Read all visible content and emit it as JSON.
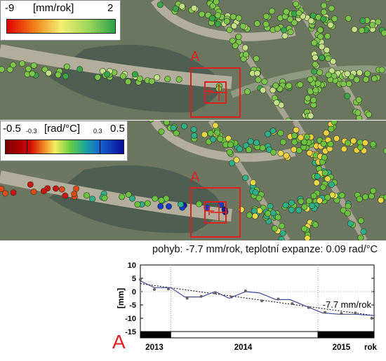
{
  "maps": {
    "top": {
      "legend": {
        "unit": "[mm/rok]",
        "min": "-9",
        "max": "2"
      },
      "marker": "A"
    },
    "bottom": {
      "legend": {
        "unit": "[rad/°C]",
        "min": "-0.5",
        "tick1": "-0.3",
        "tick2": "0.3",
        "max": "0.5"
      },
      "marker": "A"
    }
  },
  "caption": "pohyb: -7.7 mm/rok, teplotní expanze: 0.09 rad/°C",
  "chart_label": "A",
  "chart_data": {
    "type": "line",
    "ylabel": "[mm]",
    "ylim": [
      -15,
      10
    ],
    "yticks": [
      10,
      5,
      0,
      -5,
      -10,
      -15
    ],
    "xlim": [
      0,
      1
    ],
    "xticks": [
      {
        "x": 0.06,
        "label": "2013"
      },
      {
        "x": 0.44,
        "label": "2014"
      },
      {
        "x": 0.86,
        "label": "2015"
      },
      {
        "x": 0.985,
        "label": "rok"
      }
    ],
    "year_boundaries": [
      0.13,
      0.76
    ],
    "series": [
      {
        "x": [
          0.0,
          0.06,
          0.13,
          0.19,
          0.26,
          0.32,
          0.38,
          0.45,
          0.51,
          0.58,
          0.64,
          0.71,
          0.78,
          0.85,
          0.92,
          1.0
        ],
        "values": [
          4,
          1.5,
          1.5,
          -2,
          -2,
          0,
          -2.5,
          0,
          -0.5,
          -3,
          -3,
          -5.5,
          -8,
          -8.5,
          -8.5,
          -9
        ]
      }
    ],
    "points": {
      "x": [
        0.0,
        0.06,
        0.12,
        0.2,
        0.26,
        0.32,
        0.39,
        0.45,
        0.52,
        0.59,
        0.65,
        0.72,
        0.79,
        0.86,
        0.92,
        0.99
      ],
      "values": [
        4.5,
        0.8,
        1.0,
        -2.5,
        -1.8,
        -0.5,
        -2.0,
        0.3,
        -3.5,
        -2.8,
        -4.5,
        -6.0,
        -7.8,
        -8.2,
        -8.0,
        -10.0
      ]
    },
    "trend": {
      "x": [
        0.0,
        1.0
      ],
      "values": [
        3,
        -9
      ],
      "label": "-7.7 mm/rok"
    },
    "time_bar": [
      {
        "from": 0.0,
        "to": 0.13,
        "color": "#000000"
      },
      {
        "from": 0.13,
        "to": 0.76,
        "color": "#ffffff"
      },
      {
        "from": 0.76,
        "to": 1.0,
        "color": "#000000"
      }
    ]
  },
  "colors": {
    "accent": "#e02020",
    "map_background": "#6f7a63",
    "water": "#4d5c4f",
    "road": "#b3ae9b",
    "series_line": "#3d4a9a",
    "point": "#666666"
  }
}
